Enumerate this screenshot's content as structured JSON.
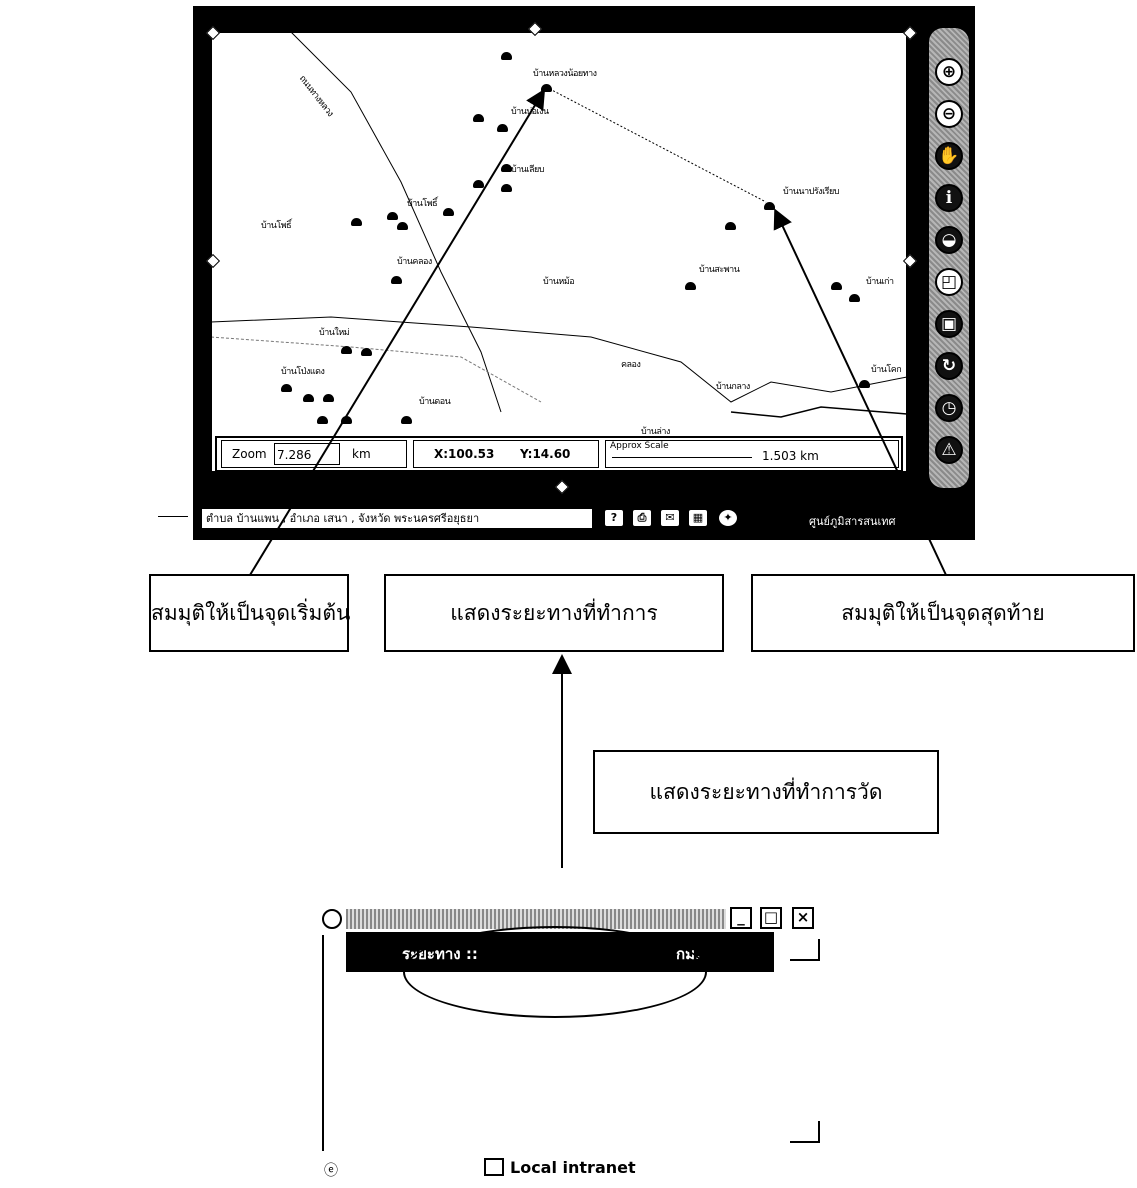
{
  "map_window": {
    "place_labels": [
      {
        "text": "บ้านหลวงน้อยทาง"
      },
      {
        "text": "บ้านบ่อเงิน"
      },
      {
        "text": "บ้านเลียบ"
      },
      {
        "text": "บ้านนาปรังเรียบ"
      },
      {
        "text": "บ้านโพธิ์"
      },
      {
        "text": "บ้านโพธิ์"
      },
      {
        "text": "บ้านคลอง"
      },
      {
        "text": "บ้านหม้อ"
      },
      {
        "text": "บ้านสะพาน"
      },
      {
        "text": "บ้านเก่า"
      },
      {
        "text": "บ้านใหม่"
      },
      {
        "text": "บ้านโป่งแดง"
      },
      {
        "text": "บ้านดอน"
      },
      {
        "text": "บ้านโคก"
      },
      {
        "text": "บ้านกลาง"
      },
      {
        "text": "บ้านล่าง"
      },
      {
        "text": "คลอง"
      },
      {
        "text": "ถนนทางหลวง"
      }
    ],
    "zoom_label": "Zoom",
    "zoom_value": "7.286",
    "zoom_unit": "km",
    "coord_x": "X:100.53",
    "coord_y": "Y:14.60",
    "scale_label": "Approx Scale",
    "scale_value": "1.503 km",
    "location_text": "ตำบล บ้านแพน , อำเภอ เสนา , จังหวัด พระนครศรีอยุธยา",
    "status_right": "ศูนย์ภูมิสารสนเทศ",
    "tools": [
      {
        "icon": "zoom-in-icon",
        "glyph": "⊕"
      },
      {
        "icon": "zoom-out-icon",
        "glyph": "⊖"
      },
      {
        "icon": "pan-icon",
        "glyph": "✋"
      },
      {
        "icon": "info-icon",
        "glyph": "ℹ"
      },
      {
        "icon": "measure-icon",
        "glyph": "◒"
      },
      {
        "icon": "select-icon",
        "glyph": "◰"
      },
      {
        "icon": "layer-icon",
        "glyph": "▣"
      },
      {
        "icon": "refresh-icon",
        "glyph": "↻"
      },
      {
        "icon": "history-icon",
        "glyph": "◷"
      },
      {
        "icon": "north-icon",
        "glyph": "⚠"
      }
    ],
    "status_icons": [
      {
        "icon": "help-icon",
        "glyph": "?"
      },
      {
        "icon": "print-icon",
        "glyph": "⎙"
      },
      {
        "icon": "mail-icon",
        "glyph": "✉"
      },
      {
        "icon": "grid-icon",
        "glyph": "▦"
      },
      {
        "icon": "settings-icon",
        "glyph": "✦"
      }
    ]
  },
  "callouts": {
    "start_point": "สมมุติให้เป็นจุดเริ่มต้น",
    "show_distance": "แสดงระยะทางที่ทำการ",
    "end_point": "สมมุติให้เป็นจุดสุดท้าย",
    "show_distance_measure": "แสดงระยะทางที่ทำการวัด"
  },
  "distance_window": {
    "minimize_glyph": "_",
    "maximize_glyph": "□",
    "close_glyph": "×",
    "distance_label": "ระยะทาง ::",
    "distance_unit": "กม.",
    "status_zone": "Local intranet"
  }
}
